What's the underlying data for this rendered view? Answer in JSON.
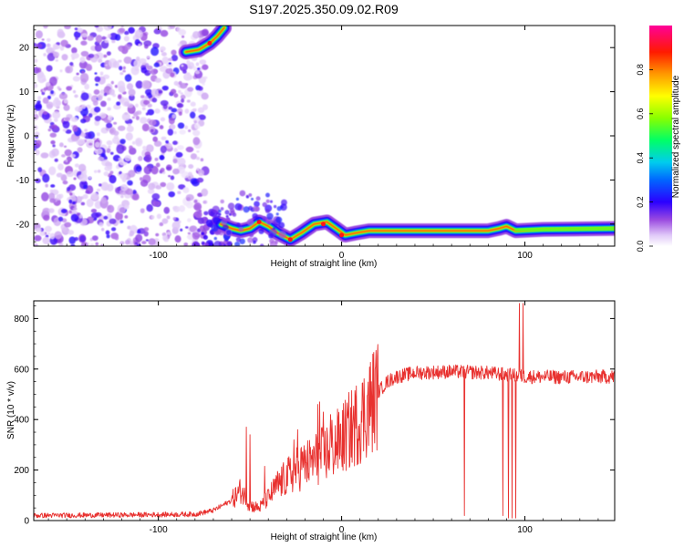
{
  "figure_title": "S197.2025.350.09.02.R09",
  "chart_data": [
    {
      "type": "heatmap",
      "title": "",
      "xlabel": "Height of straight line (km)",
      "ylabel": "Frequency (Hz)",
      "xlim": [
        -168,
        149
      ],
      "ylim": [
        -25,
        25
      ],
      "xticks": [
        -100,
        0,
        100
      ],
      "yticks": [
        -20,
        -10,
        0,
        10,
        20
      ],
      "colorbar": {
        "label": "Normalized spectral amplitude",
        "range": [
          0,
          1
        ],
        "ticks": [
          0.0,
          0.2,
          0.4,
          0.6,
          0.8
        ],
        "tick_labels": [
          "0.0",
          "0.2",
          "0.4",
          "0.6",
          "0.8"
        ],
        "colors": [
          "#ffffff",
          "#c8a8ee",
          "#7a2bd8",
          "#0000ff",
          "#00bfff",
          "#00ff66",
          "#aaff00",
          "#ffff00",
          "#ff8c00",
          "#ff0000",
          "#ff00aa"
        ]
      },
      "ridge": {
        "points": [
          [
            -70,
            22.5
          ],
          [
            -66,
            24
          ],
          [
            -62,
            25
          ]
        ],
        "upper_branch": [
          [
            -85,
            19
          ],
          [
            -78,
            19.5
          ],
          [
            -72,
            21
          ],
          [
            -68,
            22.5
          ],
          [
            -64,
            24.5
          ]
        ],
        "lower_branch": [
          [
            -66,
            -20
          ],
          [
            -60,
            -21
          ],
          [
            -55,
            -21.5
          ],
          [
            -50,
            -21
          ],
          [
            -45,
            -19.5
          ],
          [
            -40,
            -20.5
          ],
          [
            -35,
            -22
          ],
          [
            -28,
            -23.5
          ],
          [
            -22,
            -22
          ],
          [
            -15,
            -20
          ],
          [
            -8,
            -19.5
          ],
          [
            -3,
            -21
          ],
          [
            2,
            -22.5
          ],
          [
            8,
            -22
          ],
          [
            15,
            -21.5
          ],
          [
            40,
            -21.5
          ],
          [
            80,
            -21.5
          ],
          [
            86,
            -21
          ],
          [
            90,
            -20.5
          ],
          [
            95,
            -21.5
          ],
          [
            110,
            -21.2
          ],
          [
            149,
            -21
          ]
        ]
      },
      "noise_region": {
        "x_from": -168,
        "x_to": -80,
        "amplitude": "low"
      }
    },
    {
      "type": "line",
      "title": "",
      "xlabel": "Height of straight line (km)",
      "ylabel": "SNR (10 * v/v)",
      "xlim": [
        -168,
        149
      ],
      "ylim": [
        0,
        870
      ],
      "xticks": [
        -100,
        0,
        100
      ],
      "yticks": [
        0,
        200,
        400,
        600,
        800
      ],
      "color": "#e8312f",
      "envelope": [
        [
          -168,
          20
        ],
        [
          -120,
          22
        ],
        [
          -80,
          25
        ],
        [
          -70,
          40
        ],
        [
          -60,
          80
        ],
        [
          -55,
          120
        ],
        [
          -50,
          60
        ],
        [
          -45,
          50
        ],
        [
          -40,
          90
        ],
        [
          -35,
          140
        ],
        [
          -30,
          170
        ],
        [
          -25,
          200
        ],
        [
          -20,
          220
        ],
        [
          -15,
          240
        ],
        [
          -10,
          260
        ],
        [
          -5,
          290
        ],
        [
          0,
          320
        ],
        [
          5,
          360
        ],
        [
          10,
          400
        ],
        [
          15,
          450
        ],
        [
          20,
          510
        ],
        [
          25,
          550
        ],
        [
          30,
          570
        ],
        [
          40,
          585
        ],
        [
          60,
          590
        ],
        [
          80,
          585
        ],
        [
          100,
          570
        ],
        [
          120,
          568
        ],
        [
          149,
          570
        ]
      ],
      "spikes": [
        [
          -52,
          370
        ],
        [
          -50,
          340
        ],
        [
          -42,
          215
        ],
        [
          -26,
          320
        ],
        [
          -24,
          360
        ],
        [
          -22,
          290
        ],
        [
          -17,
          290
        ],
        [
          -13,
          460
        ],
        [
          -12,
          470
        ],
        [
          -10,
          430
        ],
        [
          -6,
          420
        ],
        [
          67,
          20
        ],
        [
          88,
          20
        ],
        [
          91,
          10
        ],
        [
          93,
          10
        ],
        [
          95,
          10
        ],
        [
          97,
          860
        ],
        [
          99,
          860
        ]
      ]
    }
  ]
}
